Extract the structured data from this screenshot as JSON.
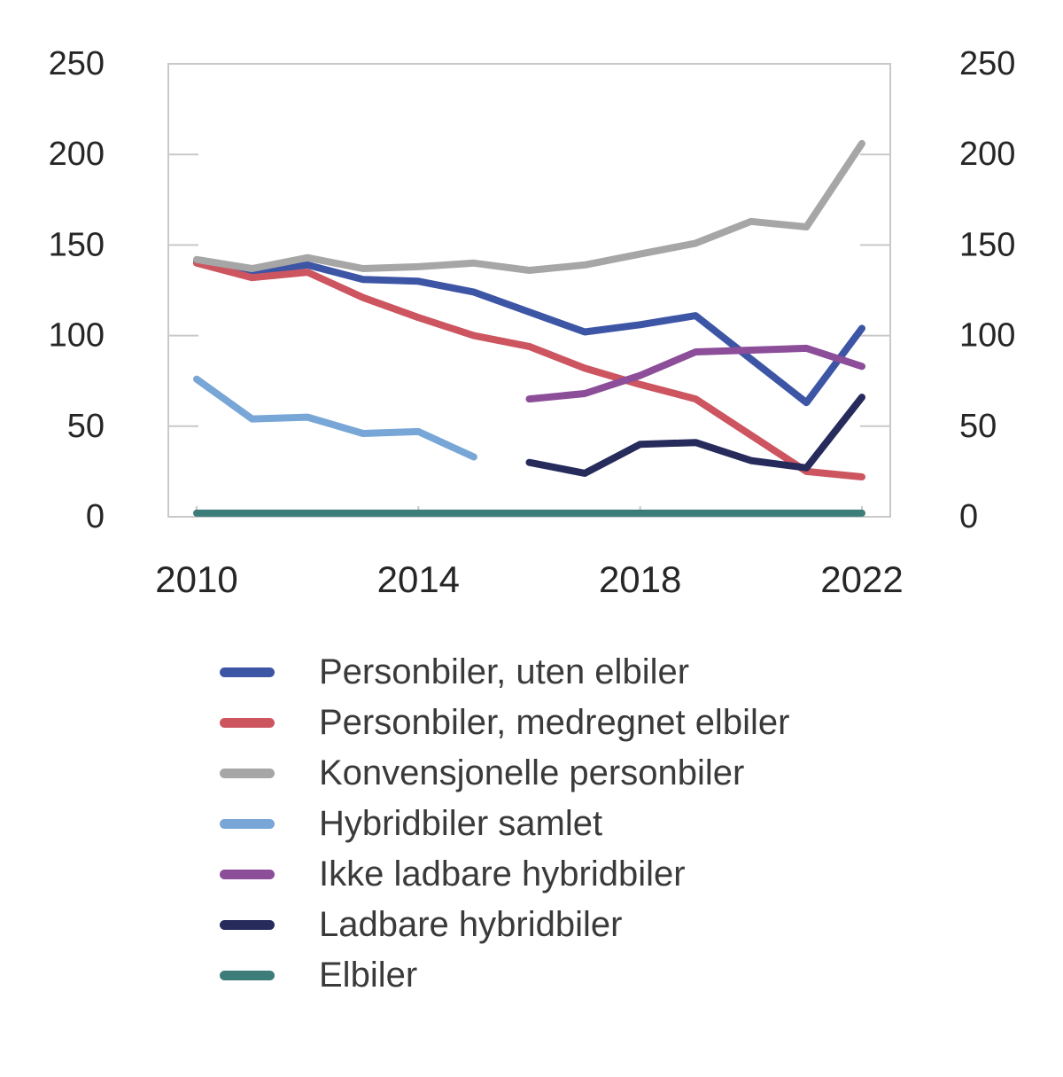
{
  "chart_data": {
    "type": "line",
    "x": [
      2010,
      2011,
      2012,
      2013,
      2014,
      2015,
      2016,
      2017,
      2018,
      2019,
      2020,
      2021,
      2022
    ],
    "x_ticks": [
      2010,
      2014,
      2018,
      2022
    ],
    "y_ticks": [
      0,
      50,
      100,
      150,
      200,
      250
    ],
    "ylim": [
      0,
      250
    ],
    "grid": false,
    "legend_position": "bottom",
    "frame_color": "#c9c9c9",
    "axis_text_color": "#262626",
    "series": [
      {
        "name": "Personbiler, uten elbiler",
        "color": "#3d55a5",
        "values": [
          141,
          135,
          139,
          131,
          130,
          124,
          113,
          102,
          106,
          111,
          87,
          63,
          104
        ]
      },
      {
        "name": "Personbiler, medregnet elbiler",
        "color": "#cd5560",
        "values": [
          140,
          132,
          135,
          121,
          110,
          100,
          94,
          82,
          73,
          65,
          45,
          25,
          22
        ]
      },
      {
        "name": "Konvensjonelle personbiler",
        "color": "#a6a6a6",
        "values": [
          142,
          137,
          143,
          137,
          138,
          140,
          136,
          139,
          145,
          151,
          163,
          160,
          206
        ]
      },
      {
        "name": "Hybridbiler samlet",
        "color": "#78a6d6",
        "values": [
          76,
          54,
          55,
          46,
          47,
          33,
          null,
          null,
          null,
          null,
          null,
          null,
          null
        ]
      },
      {
        "name": "Ikke ladbare hybridbiler",
        "color": "#8c4d99",
        "values": [
          null,
          null,
          null,
          null,
          null,
          null,
          65,
          68,
          78,
          91,
          92,
          93,
          83
        ]
      },
      {
        "name": "Ladbare hybridbiler",
        "color": "#262b5c",
        "values": [
          null,
          null,
          null,
          null,
          null,
          null,
          30,
          24,
          40,
          41,
          31,
          27,
          66
        ]
      },
      {
        "name": "Elbiler",
        "color": "#3c7c79",
        "values": [
          2,
          2,
          2,
          2,
          2,
          2,
          2,
          2,
          2,
          2,
          2,
          2,
          2
        ]
      }
    ]
  }
}
